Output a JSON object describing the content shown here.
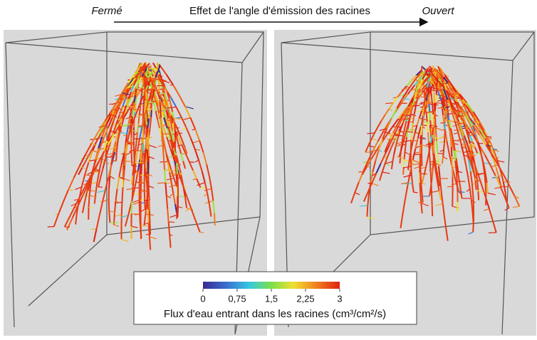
{
  "header": {
    "left": "Fermé",
    "title": "Effet de l'angle d'émission des racines",
    "right": "Ouvert"
  },
  "colorbar": {
    "range": [
      0,
      3
    ],
    "ticks": [
      0,
      {
        "value": 0.75,
        "label": "0,75"
      },
      {
        "value": 1.5,
        "label": "1,5"
      },
      {
        "value": 2.25,
        "label": "2,25"
      },
      3
    ],
    "label": "Flux d'eau entrant dans les racines (cm³/cm²/s)"
  }
}
